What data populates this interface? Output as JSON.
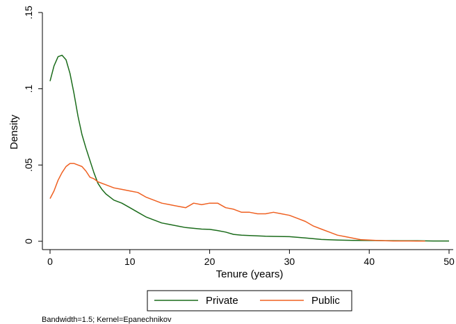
{
  "chart_data": {
    "type": "line",
    "xlabel": "Tenure (years)",
    "ylabel": "Density",
    "xlim": [
      0,
      50
    ],
    "ylim": [
      0,
      0.15
    ],
    "x_ticks": [
      0,
      10,
      20,
      30,
      40,
      50
    ],
    "x_tick_labels": [
      "0",
      "10",
      "20",
      "30",
      "40",
      "50"
    ],
    "y_ticks": [
      0,
      0.05,
      0.1,
      0.15
    ],
    "y_tick_labels": [
      "0",
      ".05",
      ".1",
      ".15"
    ],
    "grid": false,
    "legend": "bottom",
    "note": "Bandwidth=1.5; Kernel=Epanechnikov",
    "series": [
      {
        "name": "Private",
        "color": "#1a6b1a",
        "x": [
          0,
          0.5,
          1,
          1.5,
          2,
          2.5,
          3,
          3.5,
          4,
          4.5,
          5,
          5.5,
          6,
          6.5,
          7,
          8,
          9,
          10,
          11,
          12,
          13,
          14,
          15,
          16,
          17,
          18,
          19,
          20,
          21,
          22,
          23,
          24,
          25,
          26,
          27,
          28,
          30,
          32,
          34,
          36,
          38,
          40,
          42,
          44,
          46,
          48,
          50
        ],
        "y": [
          0.105,
          0.115,
          0.121,
          0.122,
          0.119,
          0.11,
          0.097,
          0.082,
          0.07,
          0.061,
          0.053,
          0.045,
          0.038,
          0.034,
          0.031,
          0.027,
          0.025,
          0.022,
          0.019,
          0.016,
          0.014,
          0.012,
          0.011,
          0.01,
          0.009,
          0.0085,
          0.008,
          0.0078,
          0.007,
          0.006,
          0.0045,
          0.004,
          0.0038,
          0.0035,
          0.0033,
          0.0032,
          0.003,
          0.0022,
          0.0012,
          0.0008,
          0.0006,
          0.0005,
          0.0004,
          0.0003,
          0.0003,
          0.0002,
          0.0002
        ]
      },
      {
        "name": "Public",
        "color": "#ef6021",
        "x": [
          0,
          0.5,
          1,
          1.5,
          2,
          2.5,
          3,
          3.5,
          4,
          4.5,
          5,
          5.5,
          6,
          7,
          8,
          9,
          10,
          11,
          12,
          13,
          14,
          15,
          16,
          17,
          18,
          19,
          20,
          21,
          22,
          23,
          24,
          25,
          26,
          27,
          28,
          29,
          30,
          31,
          32,
          33,
          34,
          35,
          36,
          37,
          38,
          39,
          40,
          41,
          42,
          43,
          44,
          45,
          46,
          47
        ],
        "y": [
          0.028,
          0.033,
          0.04,
          0.045,
          0.049,
          0.051,
          0.051,
          0.05,
          0.049,
          0.046,
          0.042,
          0.041,
          0.039,
          0.037,
          0.035,
          0.034,
          0.033,
          0.032,
          0.029,
          0.027,
          0.025,
          0.024,
          0.023,
          0.022,
          0.025,
          0.024,
          0.025,
          0.025,
          0.022,
          0.021,
          0.019,
          0.019,
          0.018,
          0.018,
          0.019,
          0.018,
          0.017,
          0.015,
          0.013,
          0.01,
          0.008,
          0.006,
          0.004,
          0.003,
          0.002,
          0.001,
          0.0008,
          0.0005,
          0.0003,
          0.0002,
          0.0002,
          0.0002,
          0.0001,
          0.0001
        ]
      }
    ]
  }
}
